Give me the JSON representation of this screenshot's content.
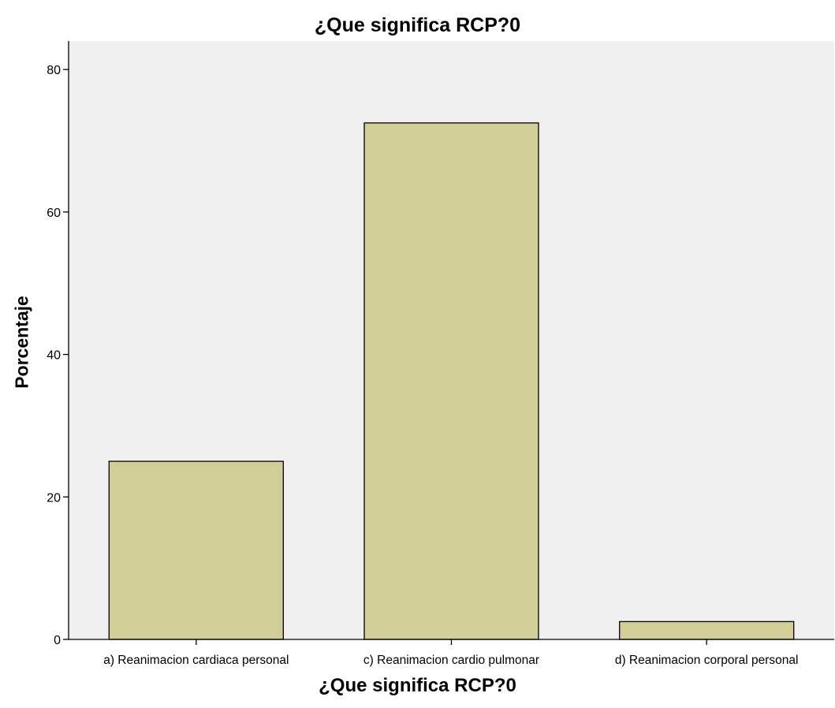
{
  "chart_data": {
    "type": "bar",
    "title": "¿Que significa RCP?0",
    "xlabel": "¿Que significa RCP?0",
    "ylabel": "Porcentaje",
    "categories": [
      "a) Reanimacion cardiaca personal",
      "c) Reanimacion cardio pulmonar",
      "d) Reanimacion corporal personal"
    ],
    "values": [
      25.0,
      72.5,
      2.5
    ],
    "ylim": [
      0,
      84
    ],
    "yticks": [
      0,
      20,
      40,
      60,
      80
    ],
    "grid": false,
    "legend": "none"
  },
  "colors": {
    "plot_background": "#f0f0f0",
    "bar_fill": "#d3ce97",
    "bar_stroke": "#000000"
  }
}
